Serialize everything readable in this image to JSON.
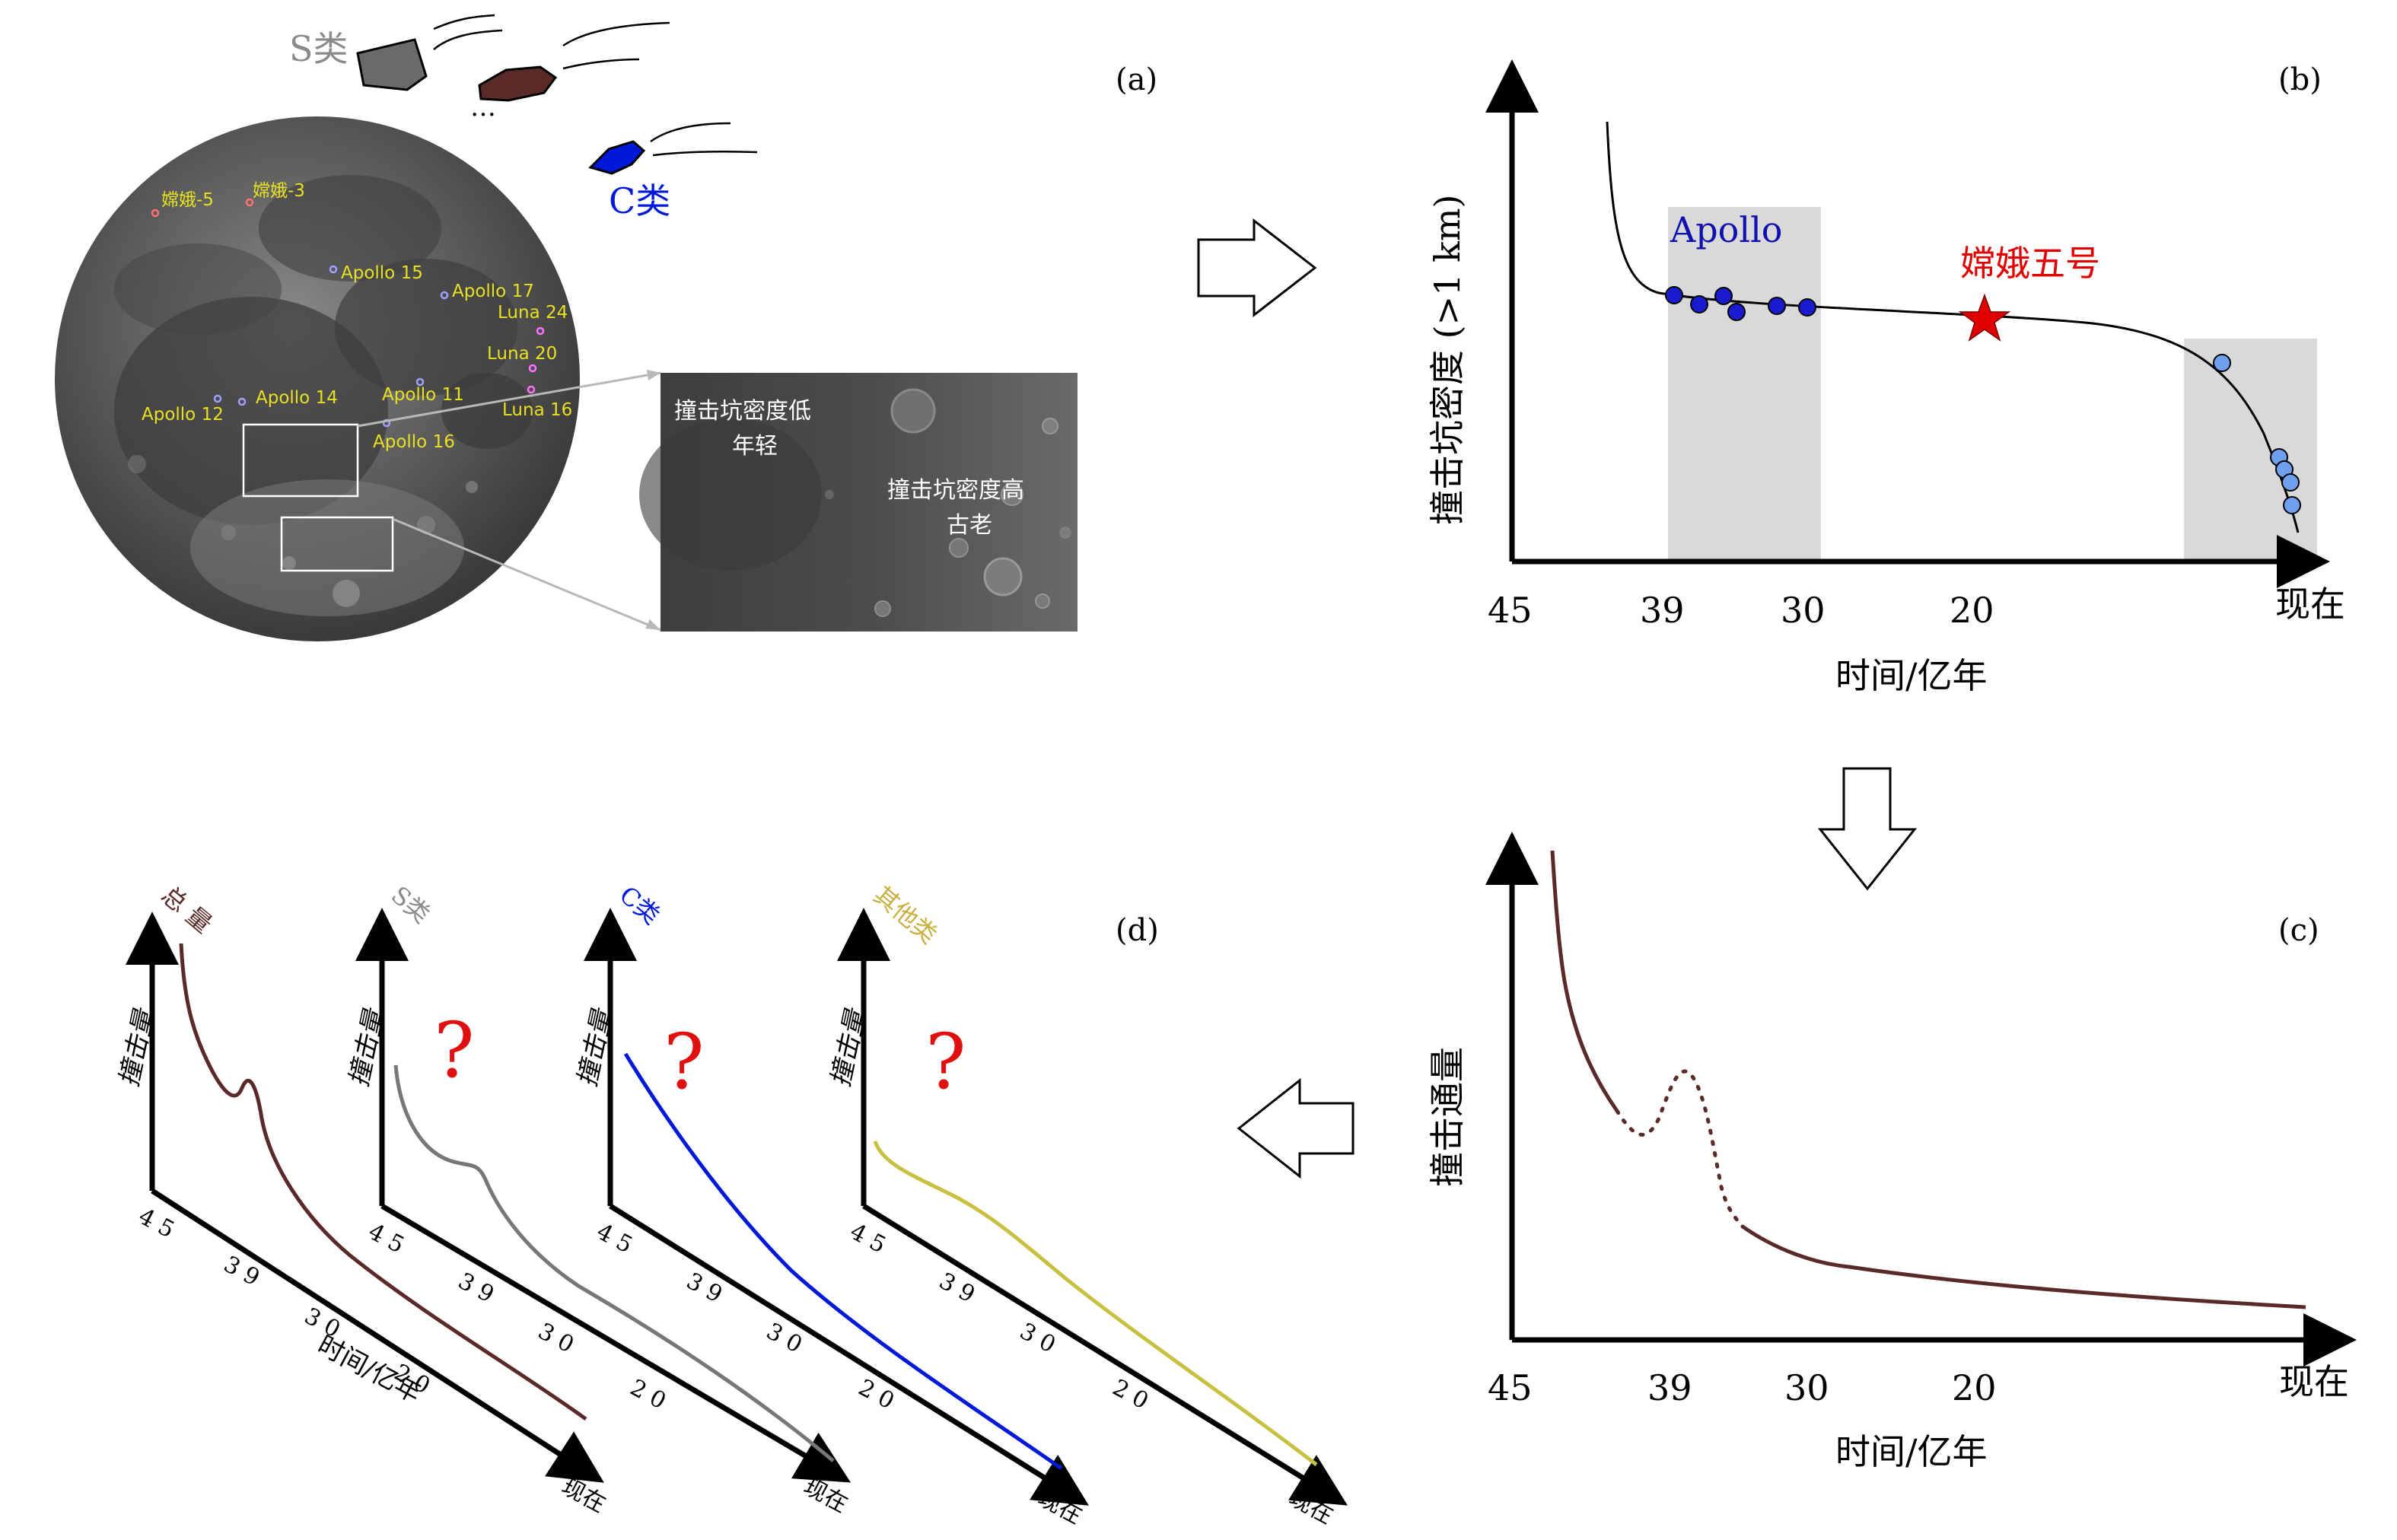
{
  "colors": {
    "apollo_blue": "#1010b0",
    "chang_e_red": "#e00000",
    "flux_brown": "#5a2a28",
    "s_gray": "#777777",
    "c_blue": "#0018d8",
    "other_yellow": "#c8c040",
    "question_red": "#e01010",
    "lunar_label_yellow": "#e8e020"
  },
  "panel_a": {
    "label": "(a)",
    "s_type": "S类",
    "c_type": "C类",
    "ellipsis": "…",
    "sites": [
      {
        "name": "嫦娥-5"
      },
      {
        "name": "嫦娥-3"
      },
      {
        "name": "Apollo 15"
      },
      {
        "name": "Apollo 17"
      },
      {
        "name": "Luna 24"
      },
      {
        "name": "Luna 20"
      },
      {
        "name": "Apollo 14"
      },
      {
        "name": "Apollo 11"
      },
      {
        "name": "Apollo 12"
      },
      {
        "name": "Luna 16"
      },
      {
        "name": "Apollo 16"
      }
    ],
    "inset_low": [
      "撞击坑密度低",
      "年轻"
    ],
    "inset_high": [
      "撞击坑密度高",
      "古老"
    ]
  },
  "panel_b": {
    "label": "(b)",
    "ylabel": "撞击坑密度 (>1 km)",
    "xlabel": "时间/亿年",
    "xticks": [
      "45",
      "39",
      "30",
      "20",
      "现在"
    ],
    "apollo": "Apollo",
    "chang_e5": "嫦娥五号"
  },
  "panel_c": {
    "label": "(c)",
    "ylabel": "撞击通量",
    "xlabel": "时间/亿年",
    "xticks": [
      "45",
      "39",
      "30",
      "20",
      "现在"
    ]
  },
  "panel_d": {
    "label": "(d)",
    "ylabel": "撞击量",
    "xlabel": "时间/亿年",
    "xticks": [
      "4 5",
      "3 9",
      "3 0",
      "2 0",
      "现在"
    ],
    "plots": [
      {
        "title": "总 量",
        "question": ""
      },
      {
        "title": "S类",
        "question": "?"
      },
      {
        "title": "C类",
        "question": "?"
      },
      {
        "title": "其他类",
        "question": "?"
      }
    ]
  }
}
